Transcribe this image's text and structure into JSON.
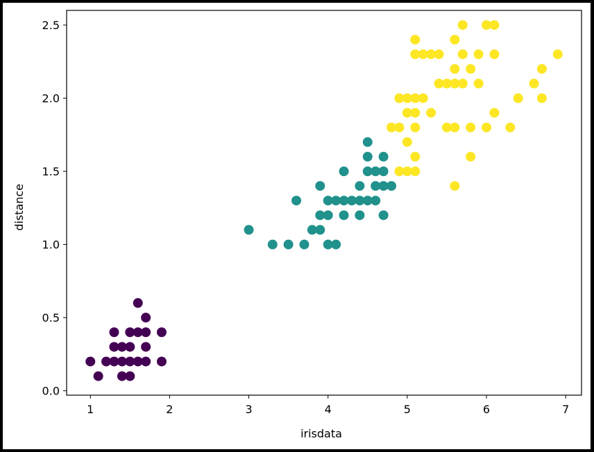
{
  "chart_data": {
    "type": "scatter",
    "title": "",
    "xlabel": "irisdata",
    "ylabel": "distance",
    "xlim": [
      0.7,
      7.2
    ],
    "ylim": [
      -0.03,
      2.6
    ],
    "xticks": [
      1,
      2,
      3,
      4,
      5,
      6,
      7
    ],
    "yticks": [
      0.0,
      0.5,
      1.0,
      1.5,
      2.0,
      2.5
    ],
    "xtick_labels": [
      "1",
      "2",
      "3",
      "4",
      "5",
      "6",
      "7"
    ],
    "ytick_labels": [
      "0.0",
      "0.5",
      "1.0",
      "1.5",
      "2.0",
      "2.5"
    ],
    "grid": false,
    "legend": "none",
    "series": [
      {
        "color": "#440154",
        "points": [
          [
            1.0,
            0.2
          ],
          [
            1.1,
            0.1
          ],
          [
            1.2,
            0.2
          ],
          [
            1.3,
            0.2
          ],
          [
            1.3,
            0.3
          ],
          [
            1.3,
            0.4
          ],
          [
            1.4,
            0.2
          ],
          [
            1.4,
            0.3
          ],
          [
            1.4,
            0.1
          ],
          [
            1.5,
            0.2
          ],
          [
            1.5,
            0.4
          ],
          [
            1.5,
            0.3
          ],
          [
            1.5,
            0.1
          ],
          [
            1.6,
            0.2
          ],
          [
            1.6,
            0.4
          ],
          [
            1.6,
            0.6
          ],
          [
            1.7,
            0.2
          ],
          [
            1.7,
            0.3
          ],
          [
            1.7,
            0.4
          ],
          [
            1.7,
            0.5
          ],
          [
            1.9,
            0.4
          ],
          [
            1.9,
            0.2
          ]
        ]
      },
      {
        "color": "#21918c",
        "points": [
          [
            3.0,
            1.1
          ],
          [
            3.3,
            1.0
          ],
          [
            3.5,
            1.0
          ],
          [
            3.6,
            1.3
          ],
          [
            3.7,
            1.0
          ],
          [
            3.8,
            1.1
          ],
          [
            3.9,
            1.1
          ],
          [
            3.9,
            1.2
          ],
          [
            3.9,
            1.4
          ],
          [
            4.0,
            1.0
          ],
          [
            4.0,
            1.2
          ],
          [
            4.0,
            1.3
          ],
          [
            4.1,
            1.0
          ],
          [
            4.1,
            1.3
          ],
          [
            4.2,
            1.2
          ],
          [
            4.2,
            1.3
          ],
          [
            4.2,
            1.5
          ],
          [
            4.3,
            1.3
          ],
          [
            4.4,
            1.2
          ],
          [
            4.4,
            1.3
          ],
          [
            4.4,
            1.4
          ],
          [
            4.5,
            1.3
          ],
          [
            4.5,
            1.5
          ],
          [
            4.5,
            1.7
          ],
          [
            4.5,
            1.6
          ],
          [
            4.6,
            1.3
          ],
          [
            4.6,
            1.4
          ],
          [
            4.6,
            1.5
          ],
          [
            4.7,
            1.2
          ],
          [
            4.7,
            1.4
          ],
          [
            4.7,
            1.5
          ],
          [
            4.7,
            1.6
          ],
          [
            4.8,
            1.4
          ]
        ]
      },
      {
        "color": "#fde725",
        "points": [
          [
            4.8,
            1.8
          ],
          [
            4.9,
            1.5
          ],
          [
            4.9,
            1.8
          ],
          [
            4.9,
            2.0
          ],
          [
            5.0,
            1.5
          ],
          [
            5.0,
            1.7
          ],
          [
            5.0,
            1.9
          ],
          [
            5.0,
            2.0
          ],
          [
            5.1,
            1.5
          ],
          [
            5.1,
            1.6
          ],
          [
            5.1,
            1.8
          ],
          [
            5.1,
            1.9
          ],
          [
            5.1,
            2.0
          ],
          [
            5.1,
            2.3
          ],
          [
            5.1,
            2.4
          ],
          [
            5.2,
            2.0
          ],
          [
            5.2,
            2.3
          ],
          [
            5.3,
            1.9
          ],
          [
            5.3,
            2.3
          ],
          [
            5.4,
            2.1
          ],
          [
            5.4,
            2.3
          ],
          [
            5.5,
            1.8
          ],
          [
            5.5,
            2.1
          ],
          [
            5.6,
            1.4
          ],
          [
            5.6,
            1.8
          ],
          [
            5.6,
            2.1
          ],
          [
            5.6,
            2.2
          ],
          [
            5.6,
            2.4
          ],
          [
            5.7,
            2.1
          ],
          [
            5.7,
            2.3
          ],
          [
            5.7,
            2.5
          ],
          [
            5.8,
            1.6
          ],
          [
            5.8,
            1.8
          ],
          [
            5.8,
            2.2
          ],
          [
            5.9,
            2.1
          ],
          [
            5.9,
            2.3
          ],
          [
            6.0,
            1.8
          ],
          [
            6.0,
            2.5
          ],
          [
            6.1,
            1.9
          ],
          [
            6.1,
            2.3
          ],
          [
            6.1,
            2.5
          ],
          [
            6.3,
            1.8
          ],
          [
            6.4,
            2.0
          ],
          [
            6.6,
            2.1
          ],
          [
            6.7,
            2.0
          ],
          [
            6.7,
            2.2
          ],
          [
            6.9,
            2.3
          ]
        ]
      }
    ]
  }
}
